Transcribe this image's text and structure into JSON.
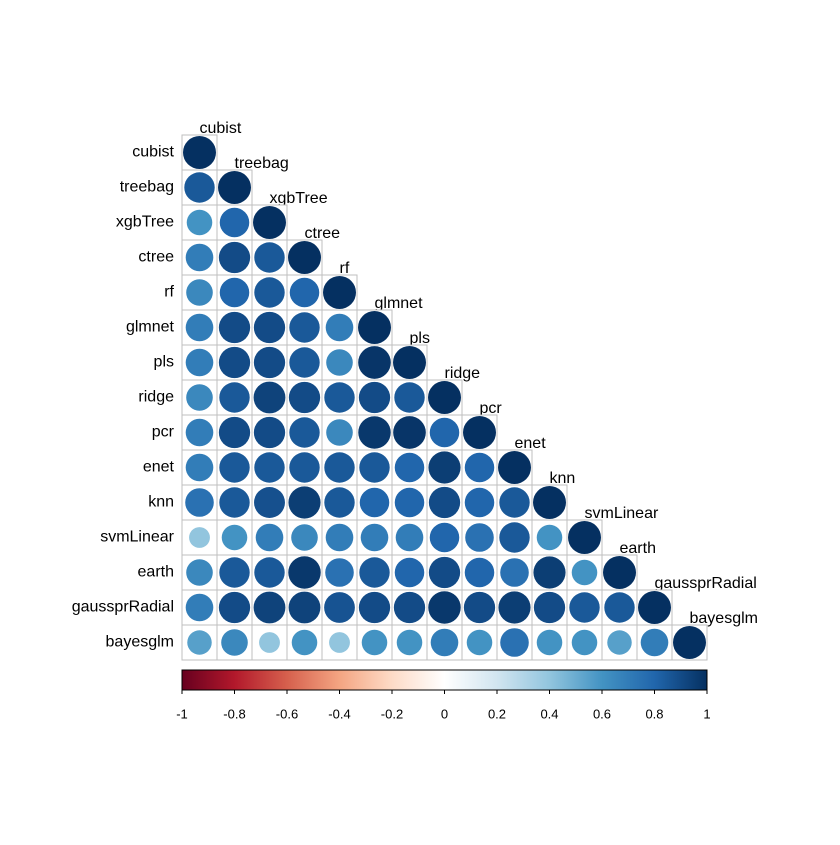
{
  "chart_data": {
    "type": "corrplot",
    "labels": [
      "cubist",
      "treebag",
      "xgbTree",
      "ctree",
      "rf",
      "glmnet",
      "pls",
      "ridge",
      "pcr",
      "enet",
      "knn",
      "svmLinear",
      "earth",
      "gaussprRadial",
      "bayesglm"
    ],
    "values": [
      [
        1
      ],
      [
        0.85,
        1
      ],
      [
        0.6,
        0.8,
        1
      ],
      [
        0.7,
        0.9,
        0.85,
        1
      ],
      [
        0.65,
        0.8,
        0.85,
        0.8,
        1
      ],
      [
        0.7,
        0.9,
        0.9,
        0.85,
        0.7,
        1
      ],
      [
        0.7,
        0.9,
        0.9,
        0.85,
        0.65,
        0.98,
        1
      ],
      [
        0.65,
        0.85,
        0.93,
        0.9,
        0.85,
        0.9,
        0.85,
        1
      ],
      [
        0.7,
        0.9,
        0.9,
        0.85,
        0.65,
        0.97,
        0.98,
        0.8,
        1
      ],
      [
        0.7,
        0.85,
        0.85,
        0.85,
        0.85,
        0.85,
        0.8,
        0.95,
        0.8,
        1
      ],
      [
        0.75,
        0.85,
        0.88,
        0.95,
        0.85,
        0.8,
        0.8,
        0.9,
        0.8,
        0.85,
        1
      ],
      [
        0.4,
        0.6,
        0.7,
        0.65,
        0.7,
        0.7,
        0.7,
        0.8,
        0.75,
        0.85,
        0.6,
        1
      ],
      [
        0.65,
        0.85,
        0.85,
        0.97,
        0.75,
        0.85,
        0.8,
        0.9,
        0.8,
        0.75,
        0.95,
        0.6,
        1
      ],
      [
        0.7,
        0.9,
        0.93,
        0.93,
        0.87,
        0.9,
        0.9,
        0.97,
        0.9,
        0.95,
        0.9,
        0.85,
        0.85,
        1
      ],
      [
        0.55,
        0.65,
        0.4,
        0.6,
        0.4,
        0.6,
        0.6,
        0.7,
        0.6,
        0.75,
        0.6,
        0.6,
        0.55,
        0.7,
        1
      ]
    ],
    "colors": [
      "#67001F",
      "#B2182B",
      "#D6604D",
      "#F4A582",
      "#FDDBC7",
      "#FFFFFF",
      "#D1E5F0",
      "#92C5DE",
      "#4393C3",
      "#2166AC",
      "#053061"
    ],
    "clim": [
      -1,
      1
    ],
    "cticks": [
      -1,
      -0.8,
      -0.6,
      -0.4,
      -0.2,
      0,
      0.2,
      0.4,
      0.6,
      0.8,
      1
    ]
  }
}
